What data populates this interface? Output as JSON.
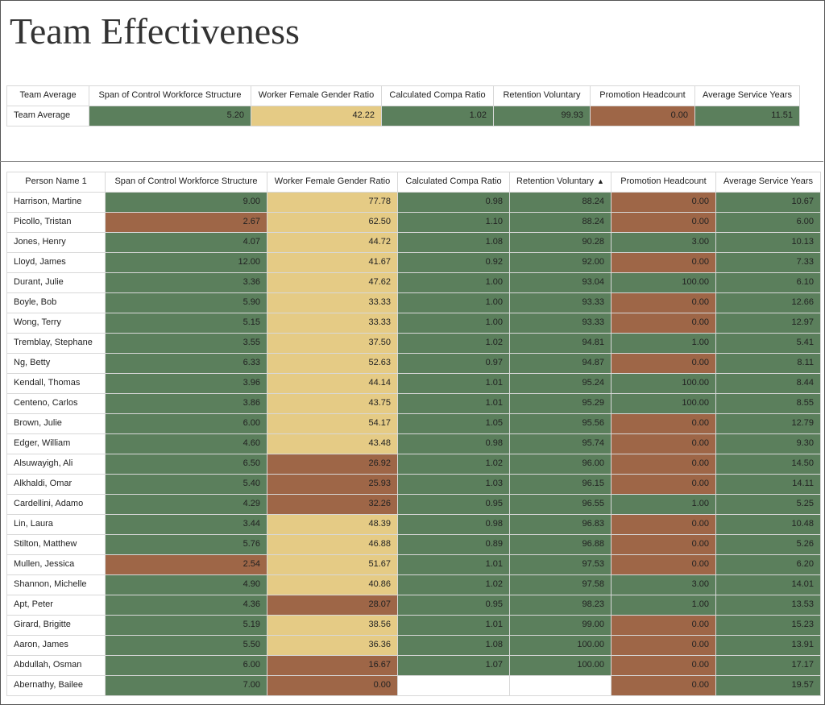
{
  "title": "Team Effectiveness",
  "summary_table": {
    "headers": [
      "Team Average",
      "Span of Control Workforce Structure",
      "Worker Female Gender Ratio",
      "Calculated Compa Ratio",
      "Retention Voluntary",
      "Promotion Headcount",
      "Average Service Years"
    ],
    "rows": [
      [
        "Team Average",
        "5.20",
        "42.22",
        "1.02",
        "99.93",
        "0.00",
        "11.51"
      ]
    ],
    "cell_colors": [
      [
        "#ffffff",
        "#5b7f5c",
        "#e5cb85",
        "#5b7f5c",
        "#5b7f5c",
        "#9e6647",
        "#5b7f5c"
      ]
    ]
  },
  "detail_table": {
    "headers": [
      "Person Name 1",
      "Span of Control Workforce Structure",
      "Worker Female Gender Ratio",
      "Calculated Compa Ratio",
      "Retention Voluntary",
      "Promotion Headcount",
      "Average Service Years"
    ],
    "sorted_column": 4,
    "rows": [
      [
        "Harrison, Martine",
        "9.00",
        "77.78",
        "0.98",
        "88.24",
        "0.00",
        "10.67"
      ],
      [
        "Picollo, Tristan",
        "2.67",
        "62.50",
        "1.10",
        "88.24",
        "0.00",
        "6.00"
      ],
      [
        "Jones, Henry",
        "4.07",
        "44.72",
        "1.08",
        "90.28",
        "3.00",
        "10.13"
      ],
      [
        "Lloyd, James",
        "12.00",
        "41.67",
        "0.92",
        "92.00",
        "0.00",
        "7.33"
      ],
      [
        "Durant, Julie",
        "3.36",
        "47.62",
        "1.00",
        "93.04",
        "100.00",
        "6.10"
      ],
      [
        "Boyle, Bob",
        "5.90",
        "33.33",
        "1.00",
        "93.33",
        "0.00",
        "12.66"
      ],
      [
        "Wong, Terry",
        "5.15",
        "33.33",
        "1.00",
        "93.33",
        "0.00",
        "12.97"
      ],
      [
        "Tremblay, Stephane",
        "3.55",
        "37.50",
        "1.02",
        "94.81",
        "1.00",
        "5.41"
      ],
      [
        "Ng, Betty",
        "6.33",
        "52.63",
        "0.97",
        "94.87",
        "0.00",
        "8.11"
      ],
      [
        "Kendall, Thomas",
        "3.96",
        "44.14",
        "1.01",
        "95.24",
        "100.00",
        "8.44"
      ],
      [
        "Centeno, Carlos",
        "3.86",
        "43.75",
        "1.01",
        "95.29",
        "100.00",
        "8.55"
      ],
      [
        "Brown, Julie",
        "6.00",
        "54.17",
        "1.05",
        "95.56",
        "0.00",
        "12.79"
      ],
      [
        "Edger, William",
        "4.60",
        "43.48",
        "0.98",
        "95.74",
        "0.00",
        "9.30"
      ],
      [
        "Alsuwayigh, Ali",
        "6.50",
        "26.92",
        "1.02",
        "96.00",
        "0.00",
        "14.50"
      ],
      [
        "Alkhaldi, Omar",
        "5.40",
        "25.93",
        "1.03",
        "96.15",
        "0.00",
        "14.11"
      ],
      [
        "Cardellini, Adamo",
        "4.29",
        "32.26",
        "0.95",
        "96.55",
        "1.00",
        "5.25"
      ],
      [
        "Lin, Laura",
        "3.44",
        "48.39",
        "0.98",
        "96.83",
        "0.00",
        "10.48"
      ],
      [
        "Stilton, Matthew",
        "5.76",
        "46.88",
        "0.89",
        "96.88",
        "0.00",
        "5.26"
      ],
      [
        "Mullen, Jessica",
        "2.54",
        "51.67",
        "1.01",
        "97.53",
        "0.00",
        "6.20"
      ],
      [
        "Shannon, Michelle",
        "4.90",
        "40.86",
        "1.02",
        "97.58",
        "3.00",
        "14.01"
      ],
      [
        "Apt, Peter",
        "4.36",
        "28.07",
        "0.95",
        "98.23",
        "1.00",
        "13.53"
      ],
      [
        "Girard, Brigitte",
        "5.19",
        "38.56",
        "1.01",
        "99.00",
        "0.00",
        "15.23"
      ],
      [
        "Aaron, James",
        "5.50",
        "36.36",
        "1.08",
        "100.00",
        "0.00",
        "13.91"
      ],
      [
        "Abdullah, Osman",
        "6.00",
        "16.67",
        "1.07",
        "100.00",
        "0.00",
        "17.17"
      ],
      [
        "Abernathy, Bailee",
        "7.00",
        "0.00",
        null,
        null,
        "0.00",
        "19.57"
      ]
    ],
    "cell_colors": [
      [
        "#ffffff",
        "#5b7f5c",
        "#e5cb85",
        "#5b7f5c",
        "#5b7f5c",
        "#9e6647",
        "#5b7f5c"
      ],
      [
        "#ffffff",
        "#9e6647",
        "#e5cb85",
        "#5b7f5c",
        "#5b7f5c",
        "#9e6647",
        "#5b7f5c"
      ],
      [
        "#ffffff",
        "#5b7f5c",
        "#e5cb85",
        "#5b7f5c",
        "#5b7f5c",
        "#5b7f5c",
        "#5b7f5c"
      ],
      [
        "#ffffff",
        "#5b7f5c",
        "#e5cb85",
        "#5b7f5c",
        "#5b7f5c",
        "#9e6647",
        "#5b7f5c"
      ],
      [
        "#ffffff",
        "#5b7f5c",
        "#e5cb85",
        "#5b7f5c",
        "#5b7f5c",
        "#5b7f5c",
        "#5b7f5c"
      ],
      [
        "#ffffff",
        "#5b7f5c",
        "#e5cb85",
        "#5b7f5c",
        "#5b7f5c",
        "#9e6647",
        "#5b7f5c"
      ],
      [
        "#ffffff",
        "#5b7f5c",
        "#e5cb85",
        "#5b7f5c",
        "#5b7f5c",
        "#9e6647",
        "#5b7f5c"
      ],
      [
        "#ffffff",
        "#5b7f5c",
        "#e5cb85",
        "#5b7f5c",
        "#5b7f5c",
        "#5b7f5c",
        "#5b7f5c"
      ],
      [
        "#ffffff",
        "#5b7f5c",
        "#e5cb85",
        "#5b7f5c",
        "#5b7f5c",
        "#9e6647",
        "#5b7f5c"
      ],
      [
        "#ffffff",
        "#5b7f5c",
        "#e5cb85",
        "#5b7f5c",
        "#5b7f5c",
        "#5b7f5c",
        "#5b7f5c"
      ],
      [
        "#ffffff",
        "#5b7f5c",
        "#e5cb85",
        "#5b7f5c",
        "#5b7f5c",
        "#5b7f5c",
        "#5b7f5c"
      ],
      [
        "#ffffff",
        "#5b7f5c",
        "#e5cb85",
        "#5b7f5c",
        "#5b7f5c",
        "#9e6647",
        "#5b7f5c"
      ],
      [
        "#ffffff",
        "#5b7f5c",
        "#e5cb85",
        "#5b7f5c",
        "#5b7f5c",
        "#9e6647",
        "#5b7f5c"
      ],
      [
        "#ffffff",
        "#5b7f5c",
        "#9e6647",
        "#5b7f5c",
        "#5b7f5c",
        "#9e6647",
        "#5b7f5c"
      ],
      [
        "#ffffff",
        "#5b7f5c",
        "#9e6647",
        "#5b7f5c",
        "#5b7f5c",
        "#9e6647",
        "#5b7f5c"
      ],
      [
        "#ffffff",
        "#5b7f5c",
        "#9e6647",
        "#5b7f5c",
        "#5b7f5c",
        "#5b7f5c",
        "#5b7f5c"
      ],
      [
        "#ffffff",
        "#5b7f5c",
        "#e5cb85",
        "#5b7f5c",
        "#5b7f5c",
        "#9e6647",
        "#5b7f5c"
      ],
      [
        "#ffffff",
        "#5b7f5c",
        "#e5cb85",
        "#5b7f5c",
        "#5b7f5c",
        "#9e6647",
        "#5b7f5c"
      ],
      [
        "#ffffff",
        "#9e6647",
        "#e5cb85",
        "#5b7f5c",
        "#5b7f5c",
        "#9e6647",
        "#5b7f5c"
      ],
      [
        "#ffffff",
        "#5b7f5c",
        "#e5cb85",
        "#5b7f5c",
        "#5b7f5c",
        "#5b7f5c",
        "#5b7f5c"
      ],
      [
        "#ffffff",
        "#5b7f5c",
        "#9e6647",
        "#5b7f5c",
        "#5b7f5c",
        "#5b7f5c",
        "#5b7f5c"
      ],
      [
        "#ffffff",
        "#5b7f5c",
        "#e5cb85",
        "#5b7f5c",
        "#5b7f5c",
        "#9e6647",
        "#5b7f5c"
      ],
      [
        "#ffffff",
        "#5b7f5c",
        "#e5cb85",
        "#5b7f5c",
        "#5b7f5c",
        "#9e6647",
        "#5b7f5c"
      ],
      [
        "#ffffff",
        "#5b7f5c",
        "#9e6647",
        "#5b7f5c",
        "#5b7f5c",
        "#9e6647",
        "#5b7f5c"
      ],
      [
        "#ffffff",
        "#5b7f5c",
        "#9e6647",
        "#ffffff",
        "#ffffff",
        "#9e6647",
        "#5b7f5c"
      ]
    ]
  }
}
